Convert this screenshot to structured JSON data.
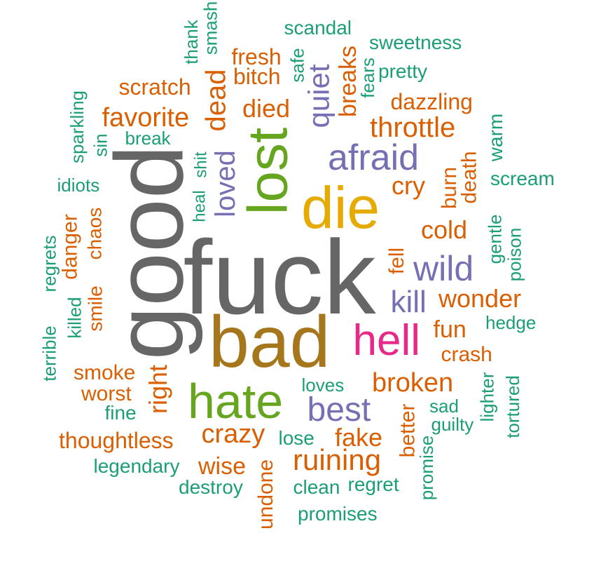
{
  "colors": {
    "gray": "#666666",
    "brown": "#A6761D",
    "gold": "#E6AB02",
    "green": "#66A61E",
    "magenta": "#E7298A",
    "purple": "#7570B3",
    "orange": "#D95F02",
    "teal": "#1B9E77"
  },
  "words": [
    {
      "text": "fuck",
      "color": "gray"
    },
    {
      "text": "good",
      "color": "gray"
    },
    {
      "text": "bad",
      "color": "brown"
    },
    {
      "text": "die",
      "color": "gold"
    },
    {
      "text": "lost",
      "color": "green"
    },
    {
      "text": "hate",
      "color": "green"
    },
    {
      "text": "hell",
      "color": "magenta"
    },
    {
      "text": "afraid",
      "color": "purple"
    },
    {
      "text": "best",
      "color": "purple"
    },
    {
      "text": "wild",
      "color": "purple"
    },
    {
      "text": "kill",
      "color": "purple"
    },
    {
      "text": "quiet",
      "color": "purple"
    },
    {
      "text": "loved",
      "color": "purple"
    },
    {
      "text": "dead",
      "color": "orange"
    },
    {
      "text": "throttle",
      "color": "orange"
    },
    {
      "text": "favorite",
      "color": "orange"
    },
    {
      "text": "died",
      "color": "orange"
    },
    {
      "text": "crazy",
      "color": "orange"
    },
    {
      "text": "ruining",
      "color": "orange"
    },
    {
      "text": "broken",
      "color": "orange"
    },
    {
      "text": "cry",
      "color": "orange"
    },
    {
      "text": "cold",
      "color": "orange"
    },
    {
      "text": "wonder",
      "color": "orange"
    },
    {
      "text": "fun",
      "color": "orange"
    },
    {
      "text": "fake",
      "color": "orange"
    },
    {
      "text": "right",
      "color": "orange"
    },
    {
      "text": "wise",
      "color": "orange"
    },
    {
      "text": "thoughtless",
      "color": "orange"
    },
    {
      "text": "scratch",
      "color": "orange"
    },
    {
      "text": "fresh",
      "color": "orange"
    },
    {
      "text": "bitch",
      "color": "orange"
    },
    {
      "text": "breaks",
      "color": "orange"
    },
    {
      "text": "dazzling",
      "color": "orange"
    },
    {
      "text": "smoke",
      "color": "orange"
    },
    {
      "text": "worst",
      "color": "orange"
    },
    {
      "text": "crash",
      "color": "orange"
    },
    {
      "text": "danger",
      "color": "orange"
    },
    {
      "text": "chaos",
      "color": "orange"
    },
    {
      "text": "smile",
      "color": "orange"
    },
    {
      "text": "death",
      "color": "orange"
    },
    {
      "text": "burn",
      "color": "orange"
    },
    {
      "text": "fell",
      "color": "orange"
    },
    {
      "text": "better",
      "color": "orange"
    },
    {
      "text": "undone",
      "color": "orange"
    },
    {
      "text": "scandal",
      "color": "teal"
    },
    {
      "text": "sweetness",
      "color": "teal"
    },
    {
      "text": "pretty",
      "color": "teal"
    },
    {
      "text": "fears",
      "color": "teal"
    },
    {
      "text": "safe",
      "color": "teal"
    },
    {
      "text": "thank",
      "color": "teal"
    },
    {
      "text": "smash",
      "color": "teal"
    },
    {
      "text": "sparkling",
      "color": "teal"
    },
    {
      "text": "sin",
      "color": "teal"
    },
    {
      "text": "break",
      "color": "teal"
    },
    {
      "text": "idiots",
      "color": "teal"
    },
    {
      "text": "heal",
      "color": "teal"
    },
    {
      "text": "shit",
      "color": "teal"
    },
    {
      "text": "warm",
      "color": "teal"
    },
    {
      "text": "scream",
      "color": "teal"
    },
    {
      "text": "gentle",
      "color": "teal"
    },
    {
      "text": "poison",
      "color": "teal"
    },
    {
      "text": "hedge",
      "color": "teal"
    },
    {
      "text": "regrets",
      "color": "teal"
    },
    {
      "text": "killed",
      "color": "teal"
    },
    {
      "text": "terrible",
      "color": "teal"
    },
    {
      "text": "loves",
      "color": "teal"
    },
    {
      "text": "fine",
      "color": "teal"
    },
    {
      "text": "lose",
      "color": "teal"
    },
    {
      "text": "legendary",
      "color": "teal"
    },
    {
      "text": "destroy",
      "color": "teal"
    },
    {
      "text": "clean",
      "color": "teal"
    },
    {
      "text": "regret",
      "color": "teal"
    },
    {
      "text": "promises",
      "color": "teal"
    },
    {
      "text": "promise",
      "color": "teal"
    },
    {
      "text": "sad",
      "color": "teal"
    },
    {
      "text": "guilty",
      "color": "teal"
    },
    {
      "text": "lighter",
      "color": "teal"
    },
    {
      "text": "tortured",
      "color": "teal"
    }
  ]
}
